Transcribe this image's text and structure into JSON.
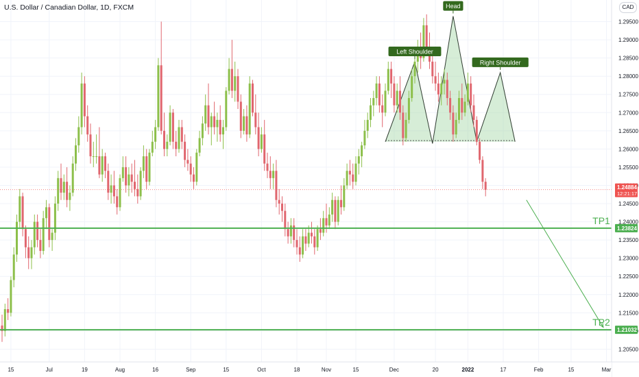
{
  "header": {
    "title": "U.S. Dollar / Canadian Dollar, 1D, FXCM",
    "currency": "CAD"
  },
  "price_axis": {
    "current_price": "1.24884",
    "countdown": "12:21:17",
    "tp1_price": "1.23824",
    "tp2_price": "1.21032"
  },
  "colors": {
    "up": "#8cbf4a",
    "down": "#e0666e",
    "level": "#4caf50",
    "pattern_fill": "#a5d6a7",
    "label_bg": "#33691e",
    "current_price_bg": "#ef5350"
  },
  "chart_data": {
    "type": "candlestick",
    "title": "U.S. Dollar / Canadian Dollar, 1D, FXCM",
    "y_ticks": [
      1.295,
      1.29,
      1.285,
      1.28,
      1.275,
      1.27,
      1.265,
      1.26,
      1.255,
      1.25,
      1.245,
      1.24,
      1.235,
      1.23,
      1.225,
      1.22,
      1.215,
      1.21,
      1.205
    ],
    "y_tick_labels": [
      "1.29500",
      "1.29000",
      "1.28500",
      "1.28000",
      "1.27500",
      "1.27000",
      "1.26500",
      "1.26000",
      "1.25500",
      "1.25000",
      "1.24500",
      "1.24000",
      "1.23500",
      "1.23000",
      "1.22500",
      "1.22000",
      "1.21500",
      "1.21000",
      "1.20500"
    ],
    "ylim": [
      1.2015,
      1.3
    ],
    "x_tick_labels": [
      "15",
      "Jul",
      "19",
      "Aug",
      "16",
      "Sep",
      "15",
      "Oct",
      "18",
      "Nov",
      "15",
      "Dec",
      "20",
      "2022",
      "17",
      "Feb",
      "15",
      "Mar"
    ],
    "x_tick_bars": [
      3,
      16,
      28,
      40,
      52,
      64,
      76,
      88,
      100,
      110,
      120,
      133,
      147,
      158,
      170,
      182,
      193,
      205
    ],
    "candles": [
      [
        1.2115,
        1.2145,
        1.207,
        1.21
      ],
      [
        1.21,
        1.2175,
        1.2085,
        1.216
      ],
      [
        1.216,
        1.219,
        1.213,
        1.215
      ],
      [
        1.215,
        1.225,
        1.214,
        1.224
      ],
      [
        1.224,
        1.233,
        1.222,
        1.231
      ],
      [
        1.231,
        1.242,
        1.229,
        1.24
      ],
      [
        1.24,
        1.249,
        1.238,
        1.247
      ],
      [
        1.247,
        1.248,
        1.236,
        1.238
      ],
      [
        1.238,
        1.239,
        1.23,
        1.233
      ],
      [
        1.233,
        1.236,
        1.227,
        1.23
      ],
      [
        1.23,
        1.235,
        1.227,
        1.233
      ],
      [
        1.233,
        1.242,
        1.231,
        1.24
      ],
      [
        1.24,
        1.242,
        1.233,
        1.235
      ],
      [
        1.235,
        1.238,
        1.23,
        1.232
      ],
      [
        1.232,
        1.243,
        1.231,
        1.241
      ],
      [
        1.241,
        1.246,
        1.238,
        1.244
      ],
      [
        1.244,
        1.245,
        1.233,
        1.235
      ],
      [
        1.235,
        1.238,
        1.232,
        1.237
      ],
      [
        1.237,
        1.247,
        1.235,
        1.245
      ],
      [
        1.245,
        1.254,
        1.243,
        1.252
      ],
      [
        1.252,
        1.256,
        1.246,
        1.248
      ],
      [
        1.248,
        1.253,
        1.246,
        1.251
      ],
      [
        1.251,
        1.255,
        1.244,
        1.246
      ],
      [
        1.246,
        1.25,
        1.243,
        1.248
      ],
      [
        1.248,
        1.258,
        1.247,
        1.256
      ],
      [
        1.256,
        1.263,
        1.254,
        1.261
      ],
      [
        1.261,
        1.269,
        1.259,
        1.266
      ],
      [
        1.266,
        1.281,
        1.264,
        1.278
      ],
      [
        1.278,
        1.28,
        1.266,
        1.269
      ],
      [
        1.269,
        1.272,
        1.262,
        1.264
      ],
      [
        1.264,
        1.267,
        1.256,
        1.258
      ],
      [
        1.258,
        1.262,
        1.255,
        1.258
      ],
      [
        1.258,
        1.264,
        1.256,
        1.258
      ],
      [
        1.258,
        1.266,
        1.252,
        1.253
      ],
      [
        1.253,
        1.26,
        1.251,
        1.258
      ],
      [
        1.258,
        1.259,
        1.252,
        1.254
      ],
      [
        1.254,
        1.256,
        1.246,
        1.248
      ],
      [
        1.248,
        1.253,
        1.245,
        1.25
      ],
      [
        1.25,
        1.254,
        1.245,
        1.247
      ],
      [
        1.247,
        1.249,
        1.242,
        1.244
      ],
      [
        1.244,
        1.253,
        1.243,
        1.252
      ],
      [
        1.252,
        1.258,
        1.251,
        1.255
      ],
      [
        1.255,
        1.258,
        1.248,
        1.25
      ],
      [
        1.25,
        1.255,
        1.247,
        1.253
      ],
      [
        1.253,
        1.256,
        1.248,
        1.251
      ],
      [
        1.251,
        1.257,
        1.247,
        1.249
      ],
      [
        1.249,
        1.253,
        1.245,
        1.247
      ],
      [
        1.247,
        1.255,
        1.246,
        1.254
      ],
      [
        1.254,
        1.261,
        1.252,
        1.258
      ],
      [
        1.258,
        1.26,
        1.249,
        1.251
      ],
      [
        1.251,
        1.26,
        1.25,
        1.259
      ],
      [
        1.259,
        1.265,
        1.258,
        1.262
      ],
      [
        1.262,
        1.268,
        1.26,
        1.266
      ],
      [
        1.266,
        1.285,
        1.265,
        1.283
      ],
      [
        1.283,
        1.295,
        1.264,
        1.265
      ],
      [
        1.265,
        1.27,
        1.258,
        1.26
      ],
      [
        1.26,
        1.264,
        1.258,
        1.262
      ],
      [
        1.262,
        1.272,
        1.261,
        1.27
      ],
      [
        1.27,
        1.271,
        1.26,
        1.262
      ],
      [
        1.262,
        1.265,
        1.258,
        1.26
      ],
      [
        1.26,
        1.268,
        1.259,
        1.266
      ],
      [
        1.266,
        1.268,
        1.26,
        1.262
      ],
      [
        1.262,
        1.264,
        1.255,
        1.257
      ],
      [
        1.257,
        1.26,
        1.254,
        1.256
      ],
      [
        1.256,
        1.258,
        1.251,
        1.253
      ],
      [
        1.253,
        1.255,
        1.249,
        1.251
      ],
      [
        1.251,
        1.26,
        1.25,
        1.259
      ],
      [
        1.259,
        1.265,
        1.258,
        1.263
      ],
      [
        1.263,
        1.269,
        1.261,
        1.267
      ],
      [
        1.267,
        1.275,
        1.265,
        1.272
      ],
      [
        1.272,
        1.278,
        1.264,
        1.266
      ],
      [
        1.266,
        1.27,
        1.261,
        1.269
      ],
      [
        1.269,
        1.273,
        1.264,
        1.266
      ],
      [
        1.266,
        1.27,
        1.262,
        1.268
      ],
      [
        1.268,
        1.272,
        1.262,
        1.264
      ],
      [
        1.264,
        1.268,
        1.26,
        1.266
      ],
      [
        1.266,
        1.277,
        1.265,
        1.276
      ],
      [
        1.276,
        1.285,
        1.275,
        1.282
      ],
      [
        1.282,
        1.29,
        1.274,
        1.276
      ],
      [
        1.276,
        1.284,
        1.273,
        1.28
      ],
      [
        1.28,
        1.282,
        1.271,
        1.273
      ],
      [
        1.273,
        1.275,
        1.263,
        1.265
      ],
      [
        1.265,
        1.271,
        1.264,
        1.269
      ],
      [
        1.269,
        1.272,
        1.262,
        1.264
      ],
      [
        1.264,
        1.28,
        1.263,
        1.278
      ],
      [
        1.278,
        1.279,
        1.269,
        1.27
      ],
      [
        1.27,
        1.275,
        1.264,
        1.266
      ],
      [
        1.266,
        1.27,
        1.258,
        1.26
      ],
      [
        1.26,
        1.266,
        1.259,
        1.264
      ],
      [
        1.264,
        1.268,
        1.254,
        1.256
      ],
      [
        1.256,
        1.259,
        1.252,
        1.254
      ],
      [
        1.254,
        1.258,
        1.249,
        1.252
      ],
      [
        1.252,
        1.256,
        1.249,
        1.254
      ],
      [
        1.254,
        1.257,
        1.244,
        1.246
      ],
      [
        1.246,
        1.249,
        1.242,
        1.245
      ],
      [
        1.245,
        1.247,
        1.24,
        1.243
      ],
      [
        1.243,
        1.245,
        1.236,
        1.238
      ],
      [
        1.238,
        1.24,
        1.234,
        1.236
      ],
      [
        1.236,
        1.241,
        1.234,
        1.239
      ],
      [
        1.239,
        1.241,
        1.233,
        1.235
      ],
      [
        1.235,
        1.238,
        1.231,
        1.233
      ],
      [
        1.233,
        1.236,
        1.229,
        1.231
      ],
      [
        1.231,
        1.238,
        1.23,
        1.236
      ],
      [
        1.236,
        1.238,
        1.232,
        1.234
      ],
      [
        1.234,
        1.239,
        1.233,
        1.237
      ],
      [
        1.237,
        1.24,
        1.234,
        1.236
      ],
      [
        1.236,
        1.238,
        1.231,
        1.233
      ],
      [
        1.233,
        1.239,
        1.232,
        1.238
      ],
      [
        1.238,
        1.241,
        1.235,
        1.237
      ],
      [
        1.237,
        1.243,
        1.236,
        1.241
      ],
      [
        1.241,
        1.245,
        1.237,
        1.239
      ],
      [
        1.239,
        1.244,
        1.238,
        1.242
      ],
      [
        1.242,
        1.248,
        1.24,
        1.246
      ],
      [
        1.246,
        1.247,
        1.238,
        1.24
      ],
      [
        1.24,
        1.247,
        1.239,
        1.246
      ],
      [
        1.246,
        1.25,
        1.242,
        1.244
      ],
      [
        1.244,
        1.252,
        1.243,
        1.25
      ],
      [
        1.25,
        1.256,
        1.249,
        1.254
      ],
      [
        1.254,
        1.257,
        1.25,
        1.253
      ],
      [
        1.253,
        1.256,
        1.249,
        1.251
      ],
      [
        1.251,
        1.258,
        1.25,
        1.256
      ],
      [
        1.256,
        1.26,
        1.253,
        1.258
      ],
      [
        1.258,
        1.262,
        1.255,
        1.261
      ],
      [
        1.261,
        1.268,
        1.26,
        1.265
      ],
      [
        1.265,
        1.27,
        1.263,
        1.268
      ],
      [
        1.268,
        1.274,
        1.266,
        1.272
      ],
      [
        1.272,
        1.276,
        1.269,
        1.274
      ],
      [
        1.274,
        1.28,
        1.272,
        1.278
      ],
      [
        1.278,
        1.28,
        1.27,
        1.272
      ],
      [
        1.272,
        1.275,
        1.266,
        1.27
      ],
      [
        1.27,
        1.278,
        1.269,
        1.276
      ],
      [
        1.276,
        1.284,
        1.275,
        1.282
      ],
      [
        1.282,
        1.284,
        1.274,
        1.278
      ],
      [
        1.278,
        1.28,
        1.27,
        1.272
      ],
      [
        1.272,
        1.278,
        1.27,
        1.276
      ],
      [
        1.276,
        1.28,
        1.268,
        1.27
      ],
      [
        1.27,
        1.272,
        1.261,
        1.263
      ],
      [
        1.263,
        1.27,
        1.262,
        1.268
      ],
      [
        1.268,
        1.276,
        1.267,
        1.274
      ],
      [
        1.274,
        1.282,
        1.273,
        1.28
      ],
      [
        1.28,
        1.286,
        1.278,
        1.284
      ],
      [
        1.284,
        1.29,
        1.281,
        1.287
      ],
      [
        1.287,
        1.292,
        1.282,
        1.285
      ],
      [
        1.285,
        1.296,
        1.284,
        1.294
      ],
      [
        1.294,
        1.297,
        1.286,
        1.288
      ],
      [
        1.288,
        1.292,
        1.282,
        1.284
      ],
      [
        1.284,
        1.288,
        1.278,
        1.28
      ],
      [
        1.28,
        1.284,
        1.276,
        1.278
      ],
      [
        1.278,
        1.281,
        1.273,
        1.275
      ],
      [
        1.275,
        1.28,
        1.272,
        1.278
      ],
      [
        1.278,
        1.282,
        1.275,
        1.279
      ],
      [
        1.279,
        1.281,
        1.272,
        1.274
      ],
      [
        1.274,
        1.276,
        1.268,
        1.27
      ],
      [
        1.27,
        1.272,
        1.262,
        1.264
      ],
      [
        1.264,
        1.27,
        1.263,
        1.268
      ],
      [
        1.268,
        1.276,
        1.267,
        1.274
      ],
      [
        1.274,
        1.278,
        1.268,
        1.27
      ],
      [
        1.27,
        1.275,
        1.269,
        1.273
      ],
      [
        1.273,
        1.281,
        1.272,
        1.278
      ],
      [
        1.278,
        1.28,
        1.27,
        1.272
      ],
      [
        1.272,
        1.275,
        1.266,
        1.268
      ],
      [
        1.268,
        1.269,
        1.261,
        1.262
      ],
      [
        1.262,
        1.263,
        1.256,
        1.257
      ],
      [
        1.257,
        1.258,
        1.249,
        1.251
      ],
      [
        1.251,
        1.252,
        1.247,
        1.2488
      ]
    ],
    "annotations": {
      "head_and_shoulders": {
        "labels": [
          "Left Shoulder",
          "Head",
          "Right Shoulder"
        ],
        "points": [
          [
            130,
            1.262
          ],
          [
            140,
            1.284
          ],
          [
            146,
            1.2615
          ],
          [
            153,
            1.2965
          ],
          [
            161,
            1.262
          ],
          [
            169,
            1.281
          ],
          [
            174,
            1.262
          ]
        ],
        "neckline": [
          [
            130,
            1.2623
          ],
          [
            174,
            1.2623
          ]
        ]
      },
      "current_price_line": 1.24884,
      "levels": [
        {
          "label": "TP1",
          "value": 1.23824
        },
        {
          "label": "TP2",
          "value": 1.21032
        }
      ],
      "projection_arrow": {
        "from": [
          176,
          1.246
        ],
        "to": [
          203,
          1.211
        ]
      }
    }
  }
}
